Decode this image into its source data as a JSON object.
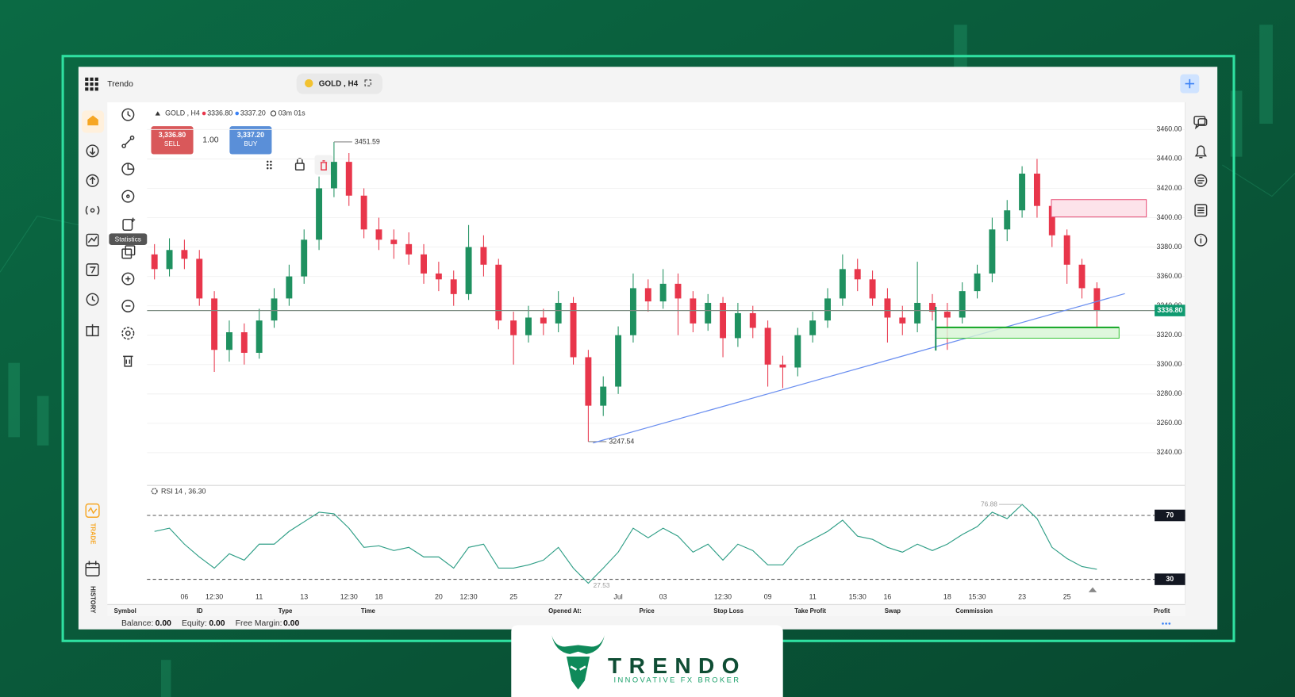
{
  "app": {
    "name": "Trendo",
    "symbol": "GOLD , H4"
  },
  "sidebar": {
    "tooltip": "Statistics",
    "trade": "TRADE",
    "history": "HISTORY"
  },
  "ticker": {
    "symbol": "GOLD , H4",
    "bid": "3336.80",
    "ask": "3337.20",
    "timer": "03m 01s"
  },
  "order": {
    "sell_price": "3,336.80",
    "sell": "SELL",
    "volume": "1.00",
    "buy_price": "3,337.20",
    "buy": "BUY"
  },
  "chart_data": [
    {
      "type": "candlestick",
      "categories": [
        null,
        null,
        "06",
        null,
        "12:30",
        null,
        null,
        "11",
        null,
        null,
        "13",
        null,
        null,
        "12:30",
        null,
        "18",
        null,
        null,
        null,
        "20",
        null,
        "12:30",
        null,
        null,
        "25",
        null,
        null,
        "27",
        null,
        null,
        null,
        "Jul",
        null,
        null,
        "03",
        null,
        null,
        null,
        "12:30",
        null,
        null,
        "09",
        null,
        null,
        "11",
        null,
        null,
        "15:30",
        null,
        "16",
        null,
        null,
        null,
        "18",
        null,
        "15:30",
        null,
        null,
        "23",
        null,
        null,
        "25",
        null,
        null
      ],
      "open": [
        3375,
        3365,
        3378,
        3372,
        3345,
        3310,
        3322,
        3308,
        3330,
        3345,
        3360,
        3385,
        3420,
        3438,
        3415,
        3392,
        3385,
        3382,
        3375,
        3362,
        3358,
        3348,
        3380,
        3368,
        3330,
        3320,
        3332,
        3328,
        3342,
        3305,
        3272,
        3285,
        3320,
        3352,
        3343,
        3355,
        3345,
        3328,
        3342,
        3318,
        3335,
        3325,
        3300,
        3298,
        3320,
        3330,
        3345,
        3365,
        3358,
        3345,
        3332,
        3328,
        3342,
        3336,
        3332,
        3350,
        3362,
        3392,
        3405,
        3430,
        3408,
        3388,
        3368,
        3352
      ],
      "high": [
        3382,
        3386,
        3385,
        3378,
        3350,
        3330,
        3328,
        3338,
        3352,
        3368,
        3392,
        3428,
        3451.59,
        3444,
        3420,
        3400,
        3392,
        3390,
        3382,
        3370,
        3364,
        3395,
        3388,
        3372,
        3336,
        3340,
        3338,
        3350,
        3346,
        3310,
        3292,
        3326,
        3362,
        3358,
        3365,
        3362,
        3350,
        3348,
        3346,
        3342,
        3340,
        3330,
        3306,
        3325,
        3336,
        3352,
        3375,
        3372,
        3364,
        3352,
        3340,
        3370,
        3348,
        3342,
        3356,
        3368,
        3400,
        3412,
        3435,
        3440,
        3412,
        3392,
        3372,
        3356
      ],
      "low": [
        3358,
        3360,
        3365,
        3340,
        3295,
        3302,
        3300,
        3304,
        3325,
        3340,
        3355,
        3378,
        3414,
        3408,
        3386,
        3378,
        3372,
        3368,
        3355,
        3350,
        3340,
        3344,
        3360,
        3324,
        3300,
        3315,
        3320,
        3322,
        3300,
        3247.54,
        3265,
        3280,
        3315,
        3336,
        3338,
        3320,
        3322,
        3323,
        3305,
        3312,
        3318,
        3285,
        3284,
        3292,
        3315,
        3325,
        3340,
        3350,
        3340,
        3315,
        3320,
        3322,
        3330,
        3310,
        3328,
        3345,
        3356,
        3384,
        3400,
        3400,
        3380,
        3355,
        3345,
        3325
      ],
      "close": [
        3365,
        3378,
        3372,
        3345,
        3310,
        3322,
        3308,
        3330,
        3345,
        3360,
        3385,
        3420,
        3438,
        3415,
        3392,
        3385,
        3382,
        3375,
        3362,
        3358,
        3348,
        3380,
        3368,
        3330,
        3320,
        3332,
        3328,
        3342,
        3305,
        3272,
        3285,
        3320,
        3352,
        3343,
        3355,
        3345,
        3328,
        3342,
        3318,
        3335,
        3325,
        3300,
        3298,
        3320,
        3330,
        3345,
        3365,
        3358,
        3345,
        3332,
        3328,
        3342,
        3336,
        3332,
        3350,
        3362,
        3392,
        3405,
        3430,
        3408,
        3388,
        3368,
        3352,
        3336.8
      ],
      "up_color": "#1f9160",
      "down_color": "#e8364b",
      "ylim": [
        3218,
        3478
      ],
      "yticks": [
        {
          "value": 3240,
          "label": "3240.00"
        },
        {
          "value": 3260,
          "label": "3260.00"
        },
        {
          "value": 3280,
          "label": "3280.00"
        },
        {
          "value": 3300,
          "label": "3300.00"
        },
        {
          "value": 3320,
          "label": "3320.00"
        },
        {
          "value": 3340,
          "label": "3340.00"
        },
        {
          "value": 3360,
          "label": "3360.00"
        },
        {
          "value": 3380,
          "label": "3380.00"
        },
        {
          "value": 3400,
          "label": "3400.00"
        },
        {
          "value": 3420,
          "label": "3420.00"
        },
        {
          "value": 3440,
          "label": "3440.00"
        },
        {
          "value": 3460,
          "label": "3460.00"
        }
      ],
      "grid": true,
      "price_label": "3336.80",
      "price_label_color": "#0f9a70"
    },
    {
      "type": "line",
      "title": "RSI 14 , 36.30",
      "color": "#2e9e86",
      "values": [
        60,
        62,
        52,
        44,
        37,
        46,
        42,
        52,
        52,
        60,
        66,
        72,
        71,
        62,
        50,
        51,
        48,
        50,
        44,
        44,
        37,
        50,
        52,
        37,
        37,
        39,
        42,
        50,
        37,
        27.53,
        37,
        47,
        62,
        56,
        62,
        57,
        47,
        52,
        42,
        52,
        48,
        39,
        39,
        50,
        55,
        60,
        67,
        57,
        55,
        50,
        47,
        52,
        48,
        52,
        58,
        63,
        72,
        68,
        76.88,
        68,
        50,
        43,
        38,
        36.3
      ],
      "ylim": [
        25,
        88
      ],
      "yticks": [
        30,
        70
      ]
    }
  ],
  "table": {
    "columns": [
      "Symbol",
      "ID",
      "Type",
      "Time",
      "Opened At:",
      "Price",
      "Stop Loss",
      "Take Profit",
      "Swap",
      "Commission",
      "Profit"
    ]
  },
  "account": {
    "balance_label": "Balance:",
    "balance": "0.00",
    "equity_label": "Equity:",
    "equity": "0.00",
    "free_margin_label": "Free Margin:",
    "free_margin": "0.00"
  },
  "brand": {
    "name": "TRENDO",
    "tagline": "INNOVATIVE FX BROKER"
  }
}
